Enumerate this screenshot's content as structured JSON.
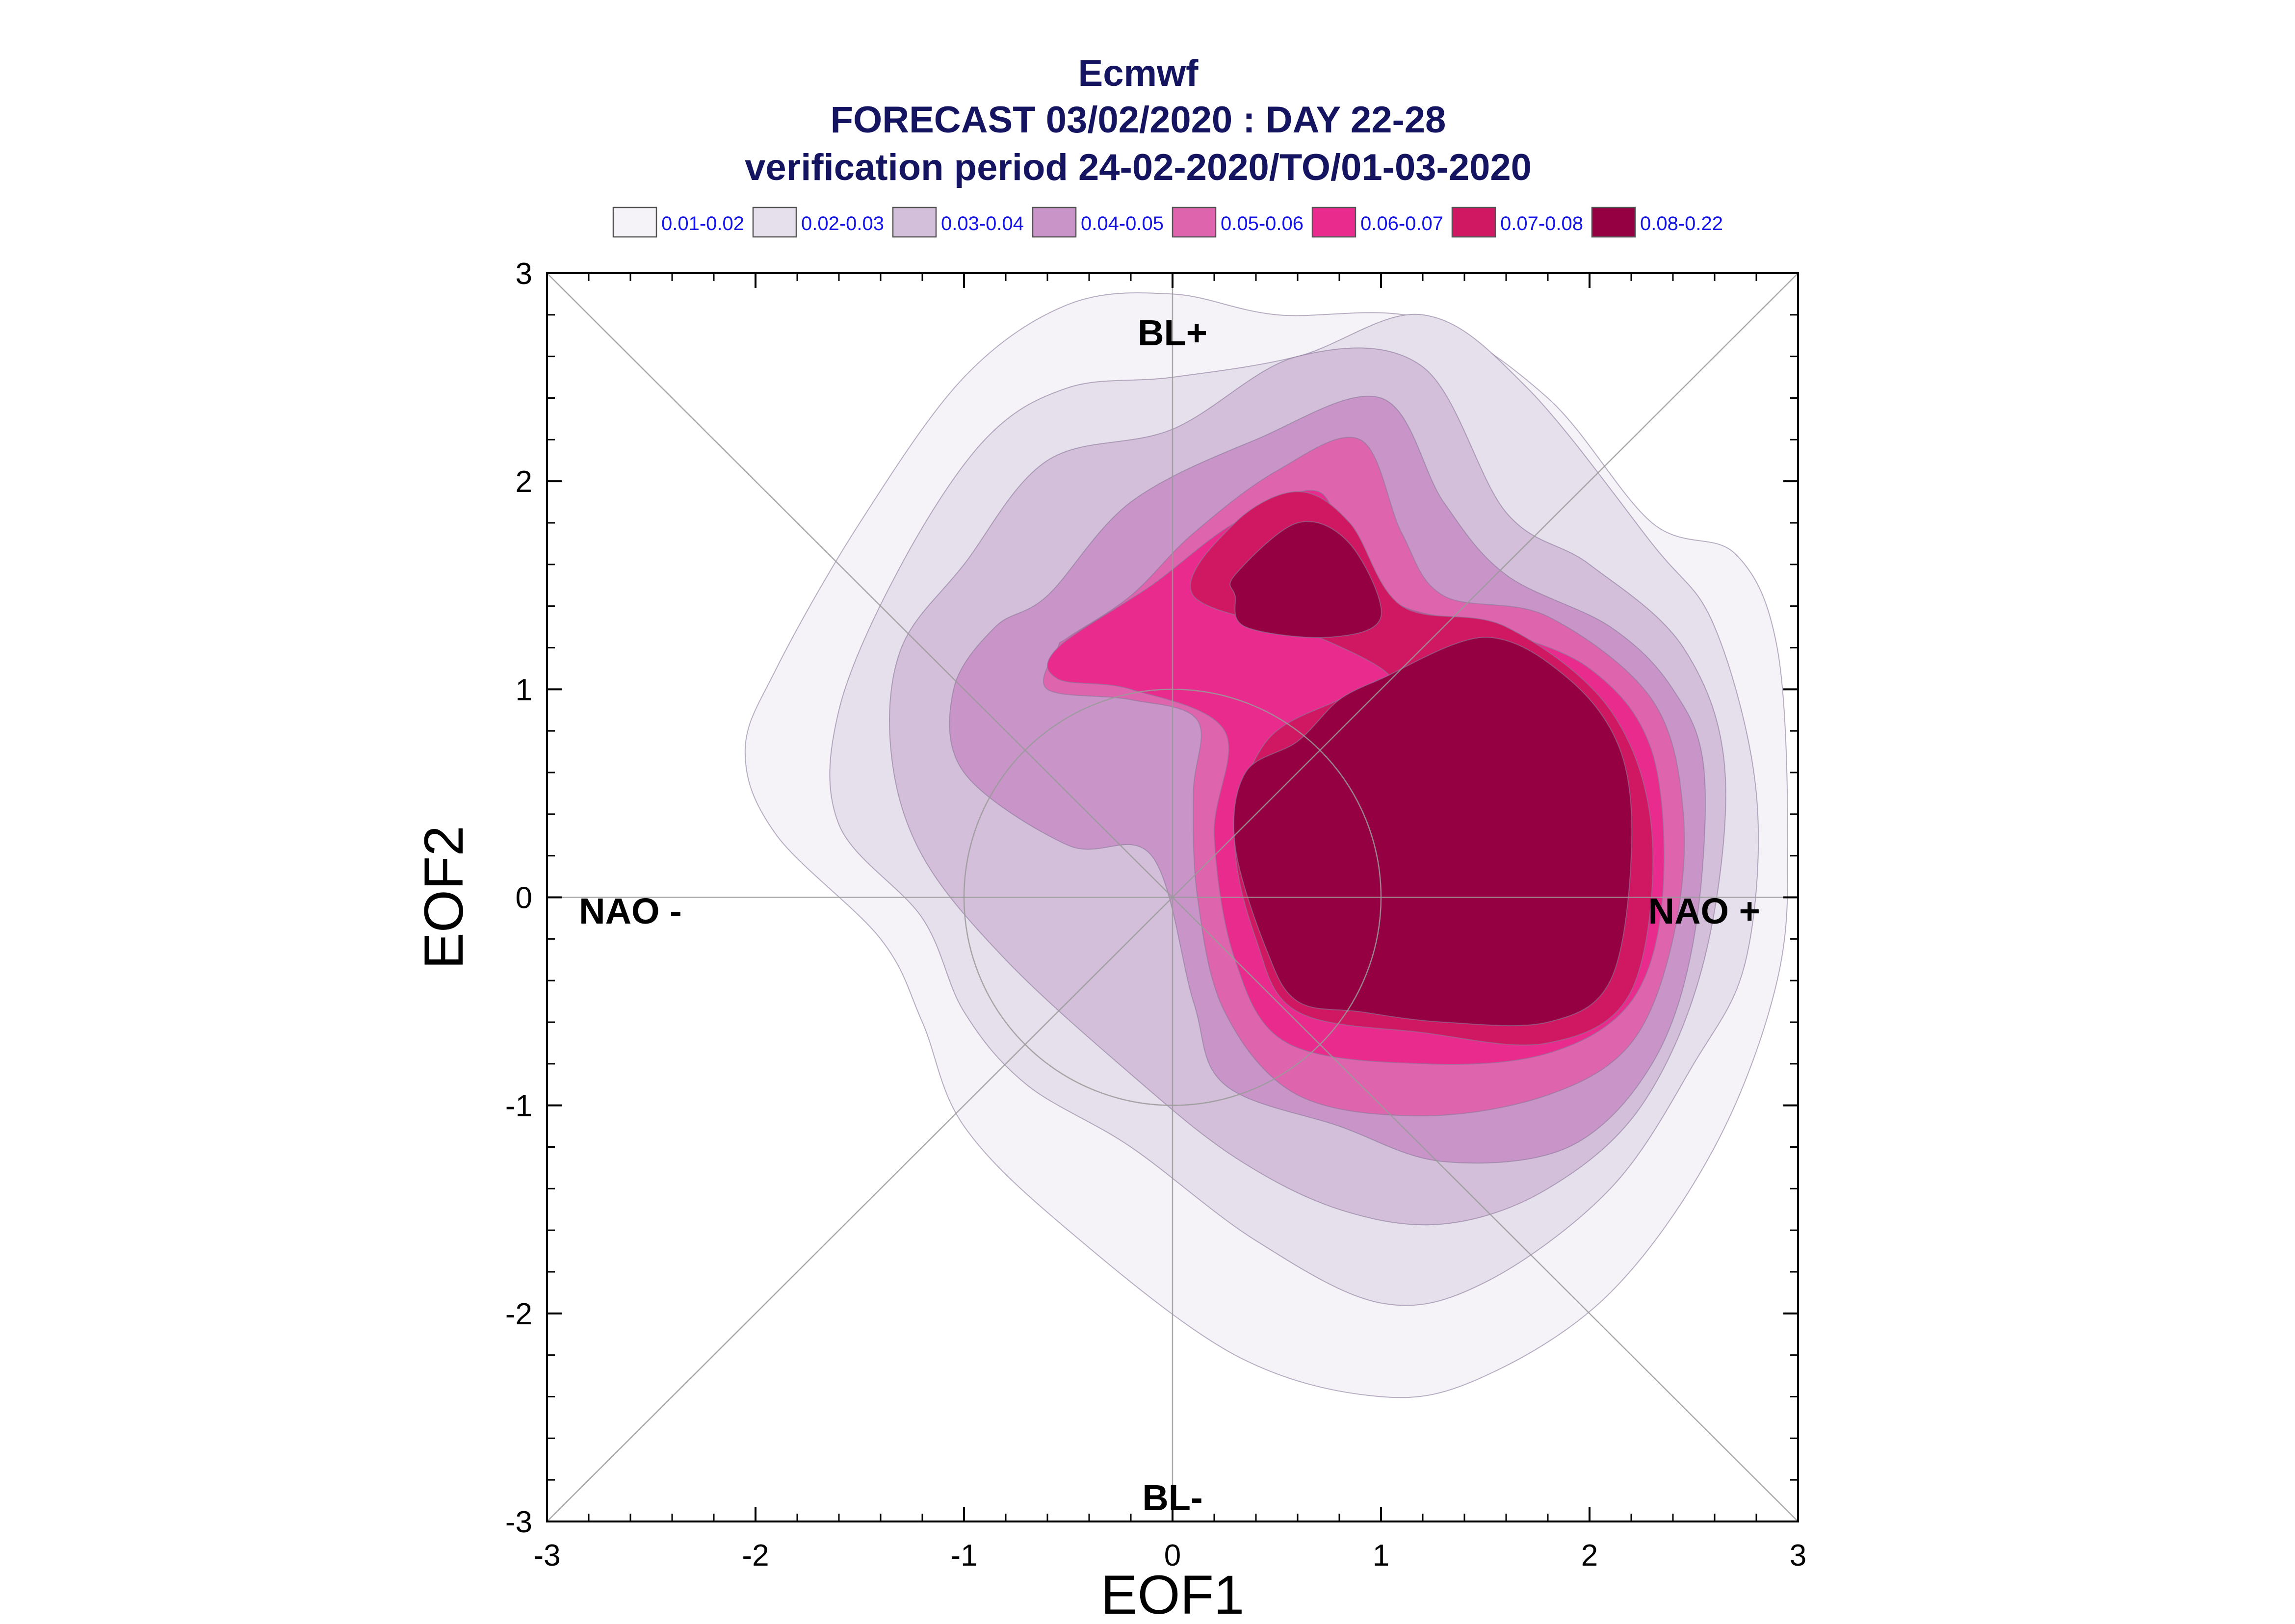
{
  "chart_data": {
    "type": "contour",
    "title_lines": [
      "Ecmwf",
      "FORECAST 03/02/2020 : DAY 22-28",
      "verification period 24-02-2020/TO/01-03-2020"
    ],
    "xlabel": "EOF1",
    "ylabel": "EOF2",
    "xlim": [
      -3,
      3
    ],
    "ylim": [
      -3,
      3
    ],
    "xticks": [
      "-3",
      "-2",
      "-1",
      "0",
      "1",
      "2",
      "3"
    ],
    "yticks": [
      "-3",
      "-2",
      "-1",
      "0",
      "1",
      "2",
      "3"
    ],
    "legend": [
      {
        "label": "0.01-0.02",
        "color": "#f5f3f8"
      },
      {
        "label": "0.02-0.03",
        "color": "#e6dfec"
      },
      {
        "label": "0.03-0.04",
        "color": "#d4bfda"
      },
      {
        "label": "0.04-0.05",
        "color": "#c995c9"
      },
      {
        "label": "0.05-0.06",
        "color": "#de64ad"
      },
      {
        "label": "0.06-0.07",
        "color": "#e92b8e"
      },
      {
        "label": "0.07-0.08",
        "color": "#d01762"
      },
      {
        "label": "0.08-0.22",
        "color": "#940042"
      }
    ],
    "regime_labels": [
      {
        "text": "BL+",
        "x": 0,
        "y": 2.7
      },
      {
        "text": "BL-",
        "x": 0,
        "y": -2.9
      },
      {
        "text": "NAO -",
        "x": -2.6,
        "y": -0.08
      },
      {
        "text": "NAO +",
        "x": 2.55,
        "y": -0.08
      }
    ],
    "reference_circle_radius": 1,
    "contours": [
      {
        "level": "0.01-0.02",
        "color": "#f5f3f8",
        "x": [
          0.0,
          0.5,
          1.2,
          1.8,
          2.3,
          2.7,
          2.9,
          2.95,
          2.9,
          2.6,
          2.1,
          1.5,
          1.0,
          0.3,
          -0.5,
          -1.0,
          -1.2,
          -1.4,
          -1.9,
          -2.05,
          -1.9,
          -1.5,
          -1.0,
          -0.5
        ],
        "y": [
          2.9,
          2.8,
          2.78,
          2.4,
          1.8,
          1.65,
          1.2,
          0.3,
          -0.4,
          -1.2,
          -1.9,
          -2.3,
          -2.4,
          -2.2,
          -1.6,
          -1.1,
          -0.6,
          -0.2,
          0.3,
          0.7,
          1.1,
          1.8,
          2.5,
          2.85
        ]
      },
      {
        "level": "0.02-0.03",
        "color": "#e6dfec",
        "x": [
          -0.5,
          0.0,
          0.6,
          1.2,
          1.7,
          2.3,
          2.6,
          2.8,
          2.75,
          2.5,
          2.1,
          1.5,
          1.0,
          0.4,
          -0.2,
          -0.7,
          -1.0,
          -1.2,
          -1.6,
          -1.6,
          -1.3,
          -0.9
        ],
        "y": [
          2.45,
          2.5,
          2.6,
          2.8,
          2.45,
          1.7,
          1.3,
          0.5,
          -0.3,
          -0.8,
          -1.4,
          -1.85,
          -1.95,
          -1.65,
          -1.2,
          -0.9,
          -0.55,
          -0.1,
          0.35,
          0.9,
          1.6,
          2.2
        ]
      },
      {
        "level": "0.03-0.04",
        "color": "#d4bfda",
        "x": [
          -1.0,
          -0.6,
          0.0,
          0.6,
          1.2,
          1.6,
          2.0,
          2.45,
          2.65,
          2.55,
          2.25,
          1.8,
          1.3,
          0.8,
          0.3,
          -0.2,
          -0.8,
          -1.2,
          -1.35,
          -1.3
        ],
        "y": [
          1.6,
          2.1,
          2.25,
          2.6,
          2.55,
          1.85,
          1.6,
          1.2,
          0.6,
          -0.3,
          -1.0,
          -1.4,
          -1.57,
          -1.5,
          -1.25,
          -0.85,
          -0.3,
          0.2,
          0.7,
          1.2
        ]
      },
      {
        "level": "0.04-0.05",
        "color": "#c995c9",
        "x": [
          -0.6,
          -0.2,
          0.4,
          1.0,
          1.3,
          1.6,
          2.1,
          2.4,
          2.55,
          2.5,
          2.3,
          1.9,
          1.3,
          0.8,
          0.25,
          0.1,
          -0.1,
          -0.5,
          -1.0,
          -1.05,
          -0.85
        ],
        "y": [
          1.45,
          1.9,
          2.2,
          2.4,
          1.9,
          1.55,
          1.3,
          1.0,
          0.6,
          -0.2,
          -0.8,
          -1.2,
          -1.27,
          -1.1,
          -0.9,
          -0.5,
          0.2,
          0.25,
          0.6,
          1.0,
          1.3
        ]
      },
      {
        "level": "0.05-0.06",
        "color": "#de64ad",
        "x": [
          -0.5,
          -0.2,
          0.1,
          0.5,
          0.9,
          1.1,
          1.3,
          1.8,
          2.3,
          2.45,
          2.4,
          2.2,
          1.8,
          1.2,
          0.6,
          0.25,
          0.12,
          0.1,
          0.12,
          -0.2,
          -0.6,
          -0.55
        ],
        "y": [
          1.25,
          1.45,
          1.75,
          2.05,
          2.2,
          1.75,
          1.45,
          1.35,
          0.95,
          0.4,
          -0.2,
          -0.7,
          -0.95,
          -1.05,
          -0.95,
          -0.55,
          0.0,
          0.5,
          0.85,
          0.95,
          1.0,
          1.2
        ]
      },
      {
        "level": "0.06-0.07",
        "color": "#e92b8e",
        "x": [
          -0.55,
          -0.1,
          0.3,
          0.7,
          0.85,
          1.1,
          1.5,
          2.0,
          2.3,
          2.35,
          2.2,
          1.8,
          1.2,
          0.55,
          0.3,
          0.2,
          0.25,
          -0.2,
          -0.55
        ],
        "y": [
          1.2,
          1.5,
          1.8,
          1.95,
          1.6,
          1.4,
          1.3,
          1.1,
          0.7,
          0.0,
          -0.5,
          -0.75,
          -0.8,
          -0.7,
          -0.3,
          0.3,
          0.8,
          1.0,
          1.05
        ]
      },
      {
        "level": "0.07-0.08",
        "color": "#d01762",
        "x": [
          0.1,
          0.3,
          0.6,
          0.85,
          1.1,
          1.6,
          2.1,
          2.3,
          2.2,
          1.8,
          1.2,
          0.6,
          0.4,
          0.3,
          0.45,
          0.8,
          1.05,
          0.7
        ],
        "y": [
          1.45,
          1.8,
          1.95,
          1.8,
          1.4,
          1.3,
          0.9,
          0.3,
          -0.45,
          -0.7,
          -0.65,
          -0.55,
          -0.2,
          0.3,
          0.75,
          0.95,
          1.05,
          1.25
        ]
      },
      {
        "level": "0.08-0.22 A",
        "color": "#940042",
        "x": [
          0.3,
          0.6,
          0.85,
          1.0,
          0.75,
          0.35,
          0.3
        ],
        "y": [
          1.55,
          1.8,
          1.7,
          1.35,
          1.25,
          1.3,
          1.45
        ]
      },
      {
        "level": "0.08-0.22 B",
        "color": "#940042",
        "x": [
          1.0,
          1.5,
          1.9,
          2.15,
          2.2,
          2.1,
          1.8,
          1.3,
          0.9,
          0.6,
          0.45,
          0.3,
          0.35,
          0.6,
          0.8,
          1.0
        ],
        "y": [
          1.05,
          1.25,
          1.05,
          0.7,
          0.2,
          -0.4,
          -0.6,
          -0.6,
          -0.55,
          -0.5,
          -0.25,
          0.25,
          0.6,
          0.75,
          0.95,
          1.05
        ]
      }
    ]
  }
}
